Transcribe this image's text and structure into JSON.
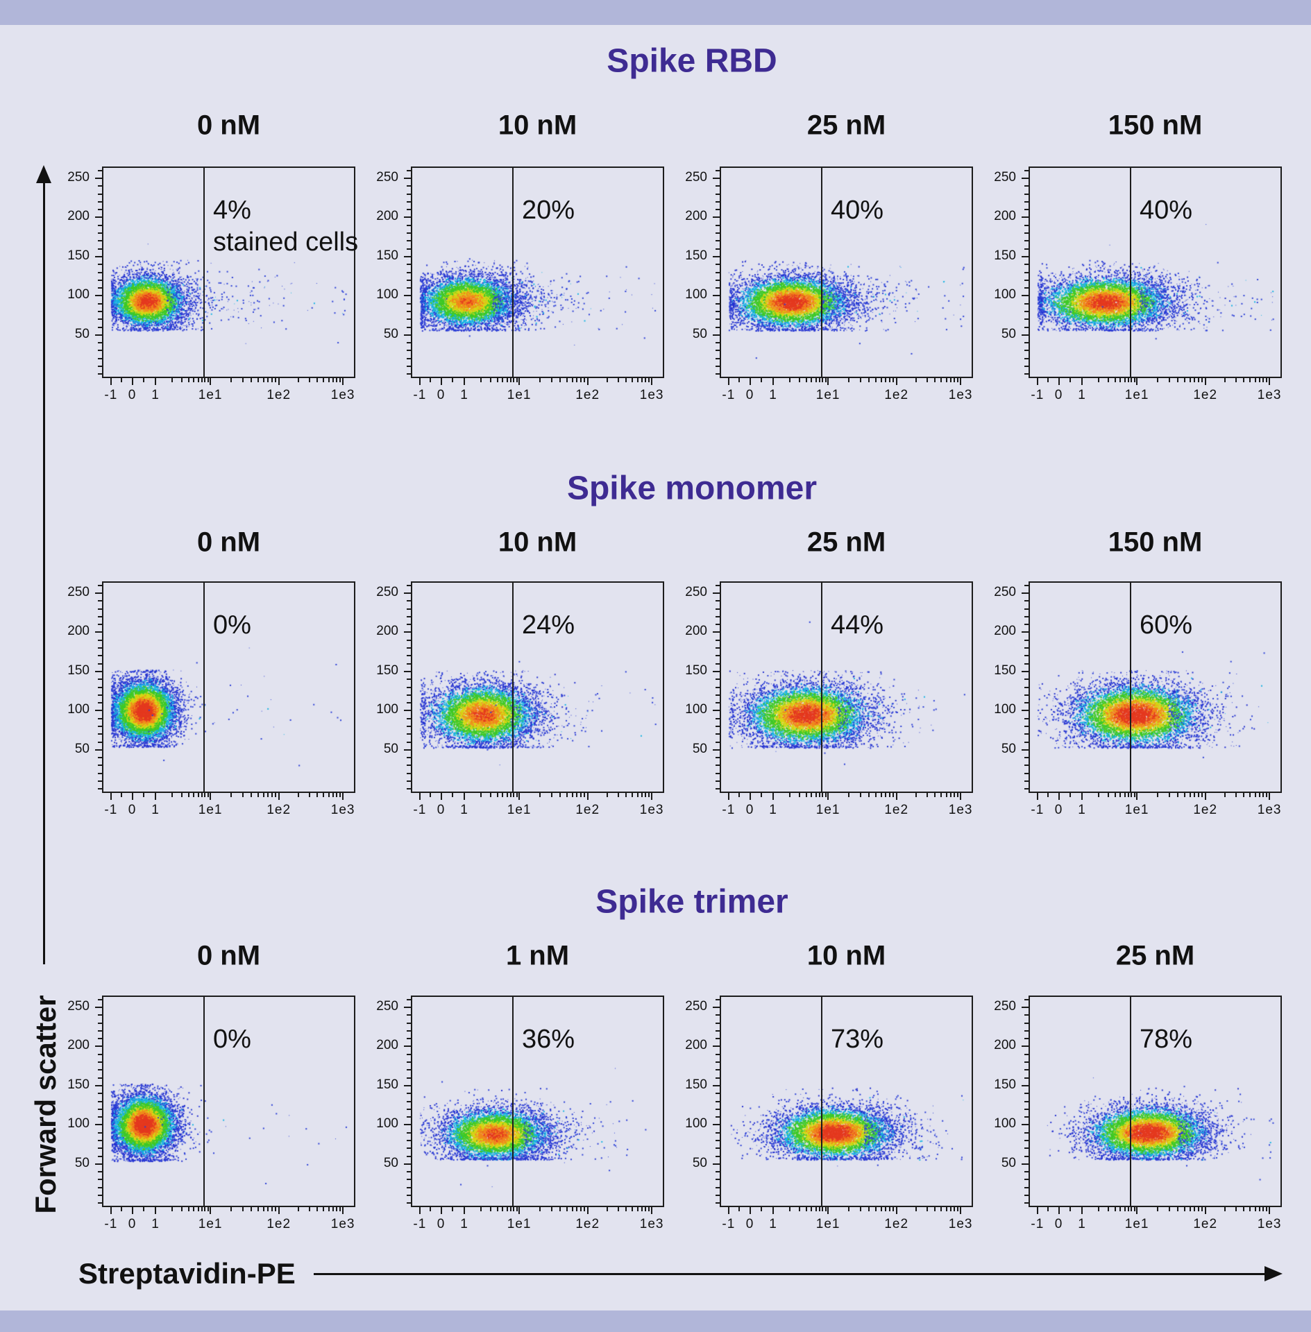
{
  "page": {
    "background_color": "#e2e3ef",
    "band_color": "#b1b6d9",
    "accent_color": "#3e2b92",
    "text_color": "#111111"
  },
  "figure": {
    "axes": {
      "x_label": "Streptavidin-PE",
      "y_label": "Forward scatter",
      "x_ticks": [
        "-1",
        "0",
        "1",
        "1e1",
        "1e2",
        "1e3"
      ],
      "y_ticks": [
        "250",
        "200",
        "150",
        "100",
        "50"
      ]
    },
    "rows": [
      {
        "title": "Spike RBD",
        "panels": [
          {
            "concentration": "0 nM",
            "percent_label": "4%",
            "percent_note": "stained cells"
          },
          {
            "concentration": "10 nM",
            "percent_label": "20%"
          },
          {
            "concentration": "25 nM",
            "percent_label": "40%"
          },
          {
            "concentration": "150 nM",
            "percent_label": "40%"
          }
        ]
      },
      {
        "title": "Spike monomer",
        "panels": [
          {
            "concentration": "0 nM",
            "percent_label": "0%"
          },
          {
            "concentration": "10 nM",
            "percent_label": "24%"
          },
          {
            "concentration": "25 nM",
            "percent_label": "44%"
          },
          {
            "concentration": "150 nM",
            "percent_label": "60%"
          }
        ]
      },
      {
        "title": "Spike trimer",
        "panels": [
          {
            "concentration": "0 nM",
            "percent_label": "0%"
          },
          {
            "concentration": "1 nM",
            "percent_label": "36%"
          },
          {
            "concentration": "10 nM",
            "percent_label": "73%"
          },
          {
            "concentration": "25 nM",
            "percent_label": "78%"
          }
        ]
      }
    ]
  },
  "chart_data": [
    {
      "type": "scatter",
      "protein": "Spike RBD",
      "concentration_nM": 0,
      "percent_stained": 4,
      "x_axis": "Streptavidin-PE, biexponential -1 to 1e3",
      "y_axis": "Forward scatter, ~0 to 260",
      "gate_frac": 0.4,
      "cluster": {
        "cx": 0.175,
        "sx": 0.075,
        "cy": 93,
        "sy": 17,
        "ymin": 55,
        "ymax": 146,
        "intensity": 0.92,
        "tail": 0.05,
        "tail_max": 0.8,
        "n": 6000
      }
    },
    {
      "type": "scatter",
      "protein": "Spike RBD",
      "concentration_nM": 10,
      "percent_stained": 20,
      "x_axis": "Streptavidin-PE, biexponential -1 to 1e3",
      "y_axis": "Forward scatter, ~0 to 260",
      "gate_frac": 0.4,
      "cluster": {
        "cx": 0.22,
        "sx": 0.1,
        "cy": 93,
        "sy": 17,
        "ymin": 55,
        "ymax": 146,
        "intensity": 0.8,
        "tail": 0.07,
        "tail_max": 0.72,
        "n": 6500
      }
    },
    {
      "type": "scatter",
      "protein": "Spike RBD",
      "concentration_nM": 25,
      "percent_stained": 40,
      "x_axis": "Streptavidin-PE, biexponential -1 to 1e3",
      "y_axis": "Forward scatter, ~0 to 260",
      "gate_frac": 0.4,
      "cluster": {
        "cx": 0.28,
        "sx": 0.115,
        "cy": 92,
        "sy": 17,
        "ymin": 55,
        "ymax": 146,
        "intensity": 0.95,
        "tail": 0.05,
        "tail_max": 0.8,
        "n": 7000
      }
    },
    {
      "type": "scatter",
      "protein": "Spike RBD",
      "concentration_nM": 150,
      "percent_stained": 40,
      "x_axis": "Streptavidin-PE, biexponential -1 to 1e3",
      "y_axis": "Forward scatter, ~0 to 260",
      "gate_frac": 0.4,
      "cluster": {
        "cx": 0.3,
        "sx": 0.13,
        "cy": 92,
        "sy": 17,
        "ymin": 55,
        "ymax": 146,
        "intensity": 0.92,
        "tail": 0.05,
        "tail_max": 0.85,
        "n": 7000
      }
    },
    {
      "type": "scatter",
      "protein": "Spike monomer",
      "concentration_nM": 0,
      "percent_stained": 0,
      "x_axis": "Streptavidin-PE, biexponential -1 to 1e3",
      "y_axis": "Forward scatter, ~0 to 260",
      "gate_frac": 0.4,
      "cluster": {
        "cx": 0.16,
        "sx": 0.065,
        "cy": 100,
        "sy": 20,
        "ymin": 53,
        "ymax": 153,
        "intensity": 1.0,
        "tail": 0.006,
        "tail_max": 0.75,
        "n": 8000
      }
    },
    {
      "type": "scatter",
      "protein": "Spike monomer",
      "concentration_nM": 10,
      "percent_stained": 24,
      "x_axis": "Streptavidin-PE, biexponential -1 to 1e3",
      "y_axis": "Forward scatter, ~0 to 260",
      "gate_frac": 0.4,
      "cluster": {
        "cx": 0.28,
        "sx": 0.11,
        "cy": 95,
        "sy": 20,
        "ymin": 52,
        "ymax": 152,
        "intensity": 0.86,
        "tail": 0.03,
        "tail_max": 0.7,
        "n": 7000
      }
    },
    {
      "type": "scatter",
      "protein": "Spike monomer",
      "concentration_nM": 25,
      "percent_stained": 44,
      "x_axis": "Streptavidin-PE, biexponential -1 to 1e3",
      "y_axis": "Forward scatter, ~0 to 260",
      "gate_frac": 0.4,
      "cluster": {
        "cx": 0.34,
        "sx": 0.125,
        "cy": 95,
        "sy": 20,
        "ymin": 52,
        "ymax": 152,
        "intensity": 0.93,
        "tail": 0.03,
        "tail_max": 0.75,
        "n": 7500
      }
    },
    {
      "type": "scatter",
      "protein": "Spike monomer",
      "concentration_nM": 150,
      "percent_stained": 60,
      "x_axis": "Streptavidin-PE, biexponential -1 to 1e3",
      "y_axis": "Forward scatter, ~0 to 260",
      "gate_frac": 0.4,
      "cluster": {
        "cx": 0.42,
        "sx": 0.13,
        "cy": 95,
        "sy": 20,
        "ymin": 52,
        "ymax": 152,
        "intensity": 0.97,
        "tail": 0.03,
        "tail_max": 0.8,
        "n": 7500
      }
    },
    {
      "type": "scatter",
      "protein": "Spike trimer",
      "concentration_nM": 0,
      "percent_stained": 0,
      "x_axis": "Streptavidin-PE, biexponential -1 to 1e3",
      "y_axis": "Forward scatter, ~0 to 260",
      "gate_frac": 0.4,
      "cluster": {
        "cx": 0.16,
        "sx": 0.065,
        "cy": 100,
        "sy": 20,
        "ymin": 53,
        "ymax": 153,
        "intensity": 1.0,
        "tail": 0.006,
        "tail_max": 0.75,
        "n": 8000
      }
    },
    {
      "type": "scatter",
      "protein": "Spike trimer",
      "concentration_nM": 1,
      "percent_stained": 36,
      "x_axis": "Streptavidin-PE, biexponential -1 to 1e3",
      "y_axis": "Forward scatter, ~0 to 260",
      "gate_frac": 0.4,
      "cluster": {
        "cx": 0.33,
        "sx": 0.11,
        "cy": 88,
        "sy": 17,
        "ymin": 55,
        "ymax": 148,
        "intensity": 0.86,
        "tail": 0.04,
        "tail_max": 0.75,
        "n": 6500
      }
    },
    {
      "type": "scatter",
      "protein": "Spike trimer",
      "concentration_nM": 10,
      "percent_stained": 73,
      "x_axis": "Streptavidin-PE, biexponential -1 to 1e3",
      "y_axis": "Forward scatter, ~0 to 260",
      "gate_frac": 0.4,
      "cluster": {
        "cx": 0.45,
        "sx": 0.12,
        "cy": 90,
        "sy": 17,
        "ymin": 55,
        "ymax": 148,
        "intensity": 0.97,
        "tail": 0.04,
        "tail_max": 0.85,
        "n": 7000
      }
    },
    {
      "type": "scatter",
      "protein": "Spike trimer",
      "concentration_nM": 25,
      "percent_stained": 78,
      "x_axis": "Streptavidin-PE, biexponential -1 to 1e3",
      "y_axis": "Forward scatter, ~0 to 260",
      "gate_frac": 0.4,
      "cluster": {
        "cx": 0.47,
        "sx": 0.12,
        "cy": 90,
        "sy": 17,
        "ymin": 55,
        "ymax": 148,
        "intensity": 0.97,
        "tail": 0.04,
        "tail_max": 0.85,
        "n": 7000
      }
    }
  ]
}
